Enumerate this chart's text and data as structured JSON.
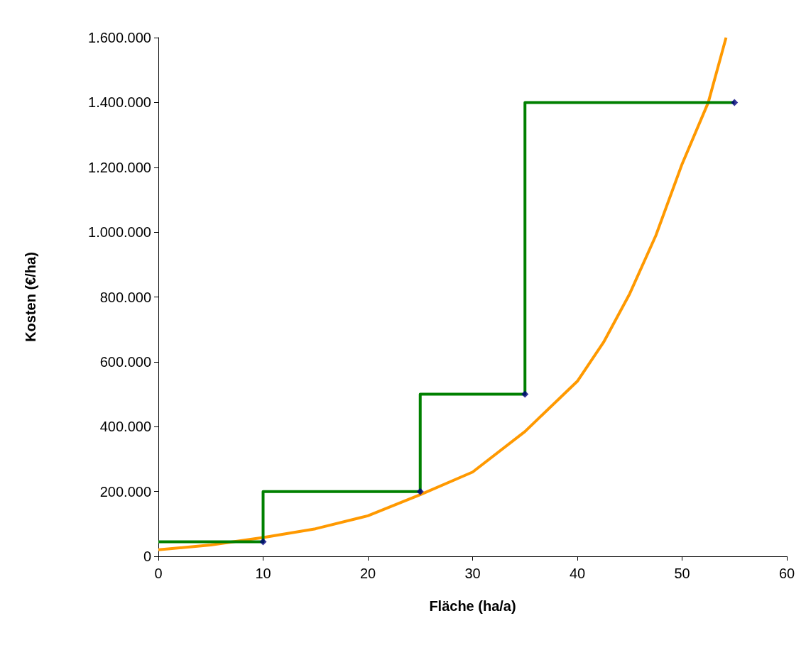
{
  "chart_data": {
    "type": "line",
    "xlabel": "Fläche (ha/a)",
    "ylabel": "Kosten (€/ha)",
    "xlim": [
      0,
      60
    ],
    "xticks": [
      0,
      10,
      20,
      30,
      40,
      50,
      60
    ],
    "ylim": [
      0,
      1600000
    ],
    "yticks": [
      {
        "value": 0,
        "label": "0"
      },
      {
        "value": 200000,
        "label": "200.000"
      },
      {
        "value": 400000,
        "label": "400.000"
      },
      {
        "value": 600000,
        "label": "600.000"
      },
      {
        "value": 800000,
        "label": "800.000"
      },
      {
        "value": 1000000,
        "label": "1.000.000"
      },
      {
        "value": 1200000,
        "label": "1.200.000"
      },
      {
        "value": 1400000,
        "label": "1.400.000"
      },
      {
        "value": 1600000,
        "label": "1.600.000"
      }
    ],
    "grid": false,
    "series": [
      {
        "color": "#ff9900",
        "marker": "none",
        "x": [
          0,
          5,
          10,
          15,
          20,
          25,
          30,
          35,
          40,
          42.5,
          45,
          47.5,
          50,
          52.5,
          54.2
        ],
        "values": [
          20000,
          35000,
          58000,
          85000,
          125000,
          190000,
          260000,
          385000,
          540000,
          660000,
          810000,
          990000,
          1210000,
          1400000,
          1600000
        ]
      },
      {
        "type": "step",
        "color": "#008000",
        "marker": "none",
        "x": [
          0,
          10,
          25,
          35,
          55
        ],
        "values": [
          45000,
          200000,
          500000,
          1400000,
          1400000
        ]
      },
      {
        "type": "scatter",
        "color": "#000080",
        "marker": "diamond",
        "x": [
          10,
          25,
          35,
          55
        ],
        "values": [
          45000,
          200000,
          500000,
          1400000
        ]
      }
    ]
  }
}
